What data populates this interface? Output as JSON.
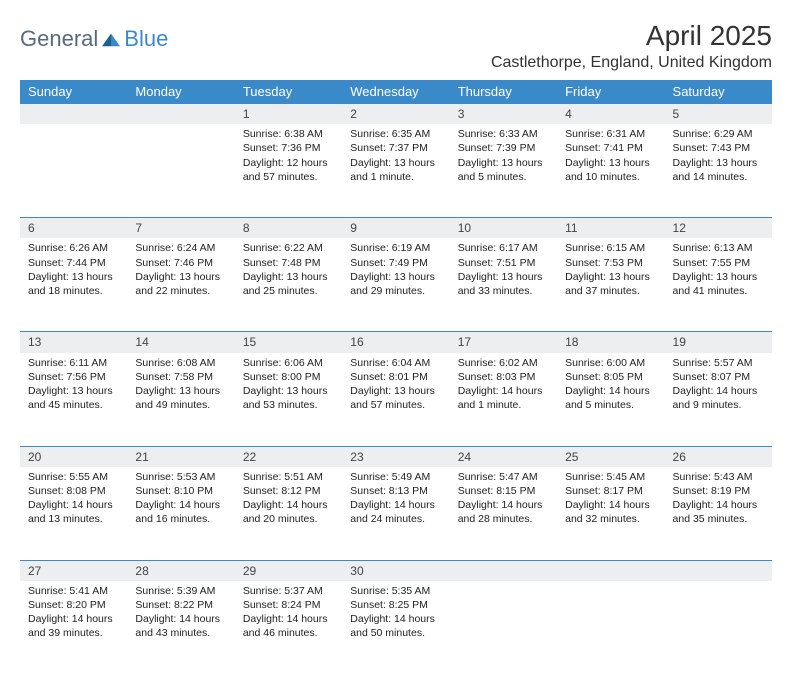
{
  "logo": {
    "part1": "General",
    "part2": "Blue"
  },
  "title": "April 2025",
  "location": "Castlethorpe, England, United Kingdom",
  "colors": {
    "header_bg": "#3a8ac9",
    "header_text": "#ffffff",
    "daynum_bg": "#eceeef",
    "border": "#3a8ac9",
    "logo_gray": "#5a6a78",
    "logo_blue": "#3a8ac9"
  },
  "weekdays": [
    "Sunday",
    "Monday",
    "Tuesday",
    "Wednesday",
    "Thursday",
    "Friday",
    "Saturday"
  ],
  "weeks": [
    {
      "nums": [
        "",
        "",
        "1",
        "2",
        "3",
        "4",
        "5"
      ],
      "cells": [
        null,
        null,
        {
          "sr": "Sunrise: 6:38 AM",
          "ss": "Sunset: 7:36 PM",
          "dl": "Daylight: 12 hours and 57 minutes."
        },
        {
          "sr": "Sunrise: 6:35 AM",
          "ss": "Sunset: 7:37 PM",
          "dl": "Daylight: 13 hours and 1 minute."
        },
        {
          "sr": "Sunrise: 6:33 AM",
          "ss": "Sunset: 7:39 PM",
          "dl": "Daylight: 13 hours and 5 minutes."
        },
        {
          "sr": "Sunrise: 6:31 AM",
          "ss": "Sunset: 7:41 PM",
          "dl": "Daylight: 13 hours and 10 minutes."
        },
        {
          "sr": "Sunrise: 6:29 AM",
          "ss": "Sunset: 7:43 PM",
          "dl": "Daylight: 13 hours and 14 minutes."
        }
      ]
    },
    {
      "nums": [
        "6",
        "7",
        "8",
        "9",
        "10",
        "11",
        "12"
      ],
      "cells": [
        {
          "sr": "Sunrise: 6:26 AM",
          "ss": "Sunset: 7:44 PM",
          "dl": "Daylight: 13 hours and 18 minutes."
        },
        {
          "sr": "Sunrise: 6:24 AM",
          "ss": "Sunset: 7:46 PM",
          "dl": "Daylight: 13 hours and 22 minutes."
        },
        {
          "sr": "Sunrise: 6:22 AM",
          "ss": "Sunset: 7:48 PM",
          "dl": "Daylight: 13 hours and 25 minutes."
        },
        {
          "sr": "Sunrise: 6:19 AM",
          "ss": "Sunset: 7:49 PM",
          "dl": "Daylight: 13 hours and 29 minutes."
        },
        {
          "sr": "Sunrise: 6:17 AM",
          "ss": "Sunset: 7:51 PM",
          "dl": "Daylight: 13 hours and 33 minutes."
        },
        {
          "sr": "Sunrise: 6:15 AM",
          "ss": "Sunset: 7:53 PM",
          "dl": "Daylight: 13 hours and 37 minutes."
        },
        {
          "sr": "Sunrise: 6:13 AM",
          "ss": "Sunset: 7:55 PM",
          "dl": "Daylight: 13 hours and 41 minutes."
        }
      ]
    },
    {
      "nums": [
        "13",
        "14",
        "15",
        "16",
        "17",
        "18",
        "19"
      ],
      "cells": [
        {
          "sr": "Sunrise: 6:11 AM",
          "ss": "Sunset: 7:56 PM",
          "dl": "Daylight: 13 hours and 45 minutes."
        },
        {
          "sr": "Sunrise: 6:08 AM",
          "ss": "Sunset: 7:58 PM",
          "dl": "Daylight: 13 hours and 49 minutes."
        },
        {
          "sr": "Sunrise: 6:06 AM",
          "ss": "Sunset: 8:00 PM",
          "dl": "Daylight: 13 hours and 53 minutes."
        },
        {
          "sr": "Sunrise: 6:04 AM",
          "ss": "Sunset: 8:01 PM",
          "dl": "Daylight: 13 hours and 57 minutes."
        },
        {
          "sr": "Sunrise: 6:02 AM",
          "ss": "Sunset: 8:03 PM",
          "dl": "Daylight: 14 hours and 1 minute."
        },
        {
          "sr": "Sunrise: 6:00 AM",
          "ss": "Sunset: 8:05 PM",
          "dl": "Daylight: 14 hours and 5 minutes."
        },
        {
          "sr": "Sunrise: 5:57 AM",
          "ss": "Sunset: 8:07 PM",
          "dl": "Daylight: 14 hours and 9 minutes."
        }
      ]
    },
    {
      "nums": [
        "20",
        "21",
        "22",
        "23",
        "24",
        "25",
        "26"
      ],
      "cells": [
        {
          "sr": "Sunrise: 5:55 AM",
          "ss": "Sunset: 8:08 PM",
          "dl": "Daylight: 14 hours and 13 minutes."
        },
        {
          "sr": "Sunrise: 5:53 AM",
          "ss": "Sunset: 8:10 PM",
          "dl": "Daylight: 14 hours and 16 minutes."
        },
        {
          "sr": "Sunrise: 5:51 AM",
          "ss": "Sunset: 8:12 PM",
          "dl": "Daylight: 14 hours and 20 minutes."
        },
        {
          "sr": "Sunrise: 5:49 AM",
          "ss": "Sunset: 8:13 PM",
          "dl": "Daylight: 14 hours and 24 minutes."
        },
        {
          "sr": "Sunrise: 5:47 AM",
          "ss": "Sunset: 8:15 PM",
          "dl": "Daylight: 14 hours and 28 minutes."
        },
        {
          "sr": "Sunrise: 5:45 AM",
          "ss": "Sunset: 8:17 PM",
          "dl": "Daylight: 14 hours and 32 minutes."
        },
        {
          "sr": "Sunrise: 5:43 AM",
          "ss": "Sunset: 8:19 PM",
          "dl": "Daylight: 14 hours and 35 minutes."
        }
      ]
    },
    {
      "nums": [
        "27",
        "28",
        "29",
        "30",
        "",
        "",
        ""
      ],
      "cells": [
        {
          "sr": "Sunrise: 5:41 AM",
          "ss": "Sunset: 8:20 PM",
          "dl": "Daylight: 14 hours and 39 minutes."
        },
        {
          "sr": "Sunrise: 5:39 AM",
          "ss": "Sunset: 8:22 PM",
          "dl": "Daylight: 14 hours and 43 minutes."
        },
        {
          "sr": "Sunrise: 5:37 AM",
          "ss": "Sunset: 8:24 PM",
          "dl": "Daylight: 14 hours and 46 minutes."
        },
        {
          "sr": "Sunrise: 5:35 AM",
          "ss": "Sunset: 8:25 PM",
          "dl": "Daylight: 14 hours and 50 minutes."
        },
        null,
        null,
        null
      ]
    }
  ]
}
